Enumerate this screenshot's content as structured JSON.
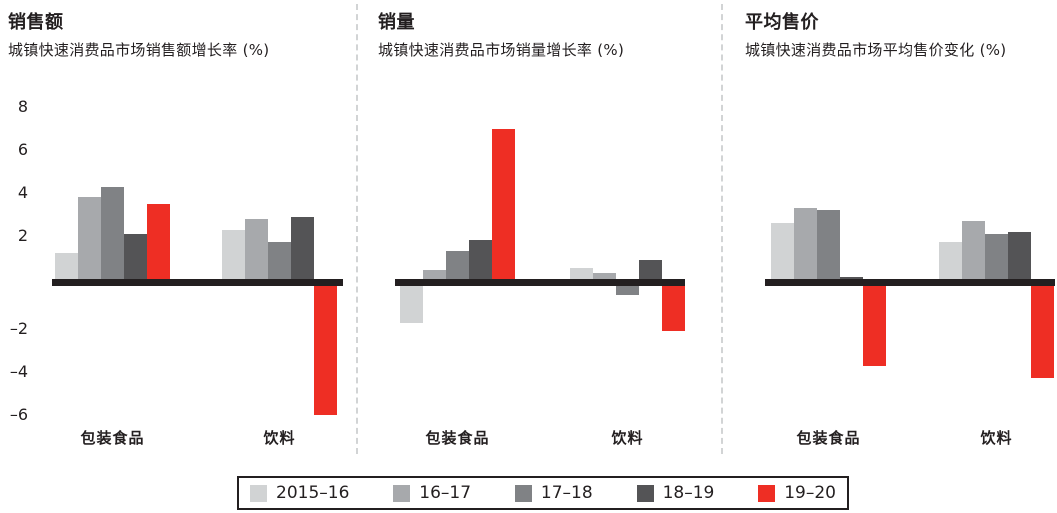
{
  "axis": {
    "ticks": [
      {
        "label": "8",
        "value": 8
      },
      {
        "label": "6",
        "value": 6
      },
      {
        "label": "4",
        "value": 4
      },
      {
        "label": "2",
        "value": 2
      },
      {
        "label": "–2",
        "value": -2
      },
      {
        "label": "–4",
        "value": -4
      },
      {
        "label": "–6",
        "value": -6
      }
    ]
  },
  "legend": {
    "items": [
      {
        "key": "2015-16",
        "label": "2015–16",
        "color": "#d1d3d4"
      },
      {
        "key": "16-17",
        "label": "16–17",
        "color": "#a7a9ac"
      },
      {
        "key": "17-18",
        "label": "17–18",
        "color": "#808285"
      },
      {
        "key": "18-19",
        "label": "18–19",
        "color": "#545456"
      },
      {
        "key": "19-20",
        "label": "19–20",
        "color": "#ee2e24"
      }
    ]
  },
  "colors": {
    "axis_line": "#231f20",
    "accent_red": "#ee2e24",
    "separator": "#d2d4d5"
  },
  "chart_data": [
    {
      "type": "bar",
      "title": "销售额",
      "subtitle": "城镇快速消费品市场销售额增长率 (%)",
      "ylabel": "%",
      "ylim": [
        -6.5,
        8.5
      ],
      "grid": false,
      "categories": [
        "包装食品",
        "饮料"
      ],
      "series": [
        {
          "name": "2015–16",
          "values": [
            1.2,
            2.3
          ]
        },
        {
          "name": "16–17",
          "values": [
            3.8,
            2.8
          ]
        },
        {
          "name": "17–18",
          "values": [
            4.3,
            1.7
          ]
        },
        {
          "name": "18–19",
          "values": [
            2.1,
            2.9
          ]
        },
        {
          "name": "19–20",
          "values": [
            3.5,
            -6.0
          ]
        }
      ]
    },
    {
      "type": "bar",
      "title": "销量",
      "subtitle": "城镇快速消费品市场销量增长率 (%)",
      "ylabel": "%",
      "ylim": [
        -6.5,
        8.5
      ],
      "grid": false,
      "categories": [
        "包装食品",
        "饮料"
      ],
      "series": [
        {
          "name": "2015–16",
          "values": [
            -1.7,
            0.5
          ]
        },
        {
          "name": "16–17",
          "values": [
            0.4,
            0.3
          ]
        },
        {
          "name": "17–18",
          "values": [
            1.3,
            -0.4
          ]
        },
        {
          "name": "18–19",
          "values": [
            1.8,
            0.9
          ]
        },
        {
          "name": "19–20",
          "values": [
            7.0,
            -2.1
          ]
        }
      ]
    },
    {
      "type": "bar",
      "title": "平均售价",
      "subtitle": "城镇快速消费品市场平均售价变化 (%)",
      "ylabel": "%",
      "ylim": [
        -6.5,
        8.5
      ],
      "grid": false,
      "categories": [
        "包装食品",
        "饮料"
      ],
      "series": [
        {
          "name": "2015–16",
          "values": [
            2.6,
            1.7
          ]
        },
        {
          "name": "16–17",
          "values": [
            3.3,
            2.7
          ]
        },
        {
          "name": "17–18",
          "values": [
            3.2,
            2.1
          ]
        },
        {
          "name": "18–19",
          "values": [
            0.1,
            2.2
          ]
        },
        {
          "name": "19–20",
          "values": [
            -3.7,
            -4.3
          ]
        }
      ]
    }
  ]
}
